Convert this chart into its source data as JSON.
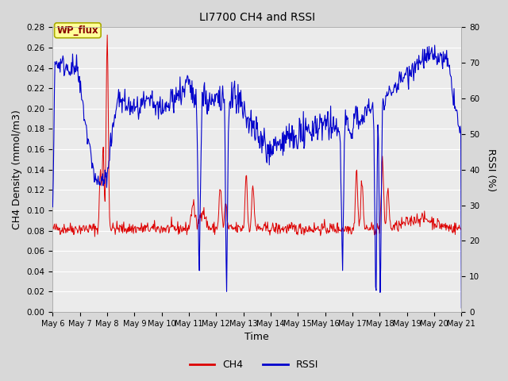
{
  "title": "LI7700 CH4 and RSSI",
  "xlabel": "Time",
  "ylabel_left": "CH4 Density (mmol/m3)",
  "ylabel_right": "RSSI (%)",
  "annotation": "WP_flux",
  "xlim_days": [
    0,
    15
  ],
  "ylim_left": [
    0.0,
    0.28
  ],
  "ylim_right": [
    0,
    80
  ],
  "yticks_left": [
    0.0,
    0.02,
    0.04,
    0.06,
    0.08,
    0.1,
    0.12,
    0.14,
    0.16,
    0.18,
    0.2,
    0.22,
    0.24,
    0.26,
    0.28
  ],
  "yticks_right": [
    0,
    10,
    20,
    30,
    40,
    50,
    60,
    70,
    80
  ],
  "xtick_labels": [
    "May 6",
    "May 7",
    "May 8",
    "May 9",
    "May 10",
    "May 11",
    "May 12",
    "May 13",
    "May 14",
    "May 15",
    "May 16",
    "May 17",
    "May 18",
    "May 19",
    "May 20",
    "May 21"
  ],
  "ch4_color": "#dd0000",
  "rssi_color": "#0000cc",
  "bg_color": "#d8d8d8",
  "plot_bg_color": "#ebebeb",
  "grid_color": "#ffffff",
  "annotation_bg": "#ffff99",
  "annotation_border": "#aaaa00",
  "annotation_text_color": "#880000",
  "legend_ch4_label": "CH4",
  "legend_rssi_label": "RSSI"
}
